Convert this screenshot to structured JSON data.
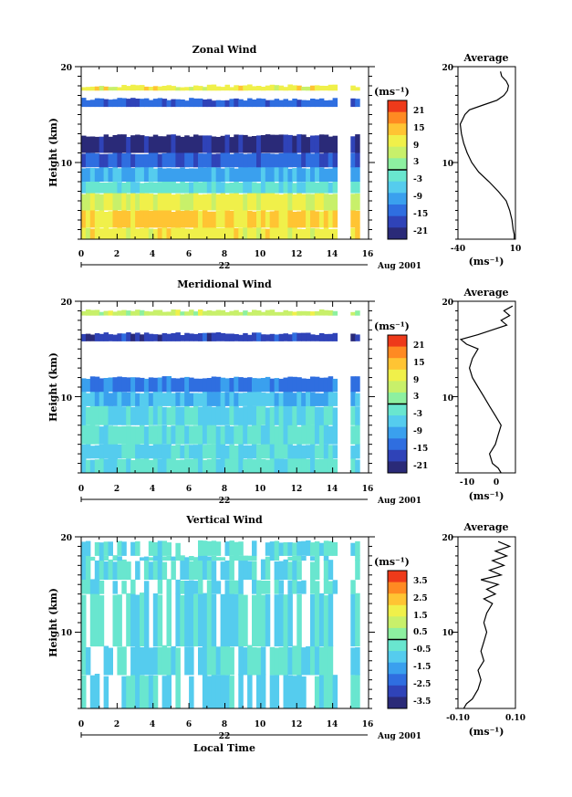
{
  "chart_data": [
    {
      "type": "heatmap",
      "title": "Zonal Wind",
      "ylabel": "Height (km)",
      "xlim": [
        0,
        16
      ],
      "ylim": [
        2,
        20
      ],
      "x_ticks": [
        "0",
        "2",
        "4",
        "6",
        "8",
        "10",
        "12",
        "14",
        "16"
      ],
      "y_ticks": [
        "10",
        "20"
      ],
      "date_day": "22",
      "date_label": "Aug 2001",
      "colorbar_unit": "(ms⁻¹)",
      "colorbar_ticks": [
        "21",
        "15",
        "9",
        "3",
        "-3",
        "-9",
        "-15",
        "-21"
      ],
      "colorbar_range": [
        -24,
        24
      ],
      "profile_layers": [
        {
          "h0": 2.0,
          "h1": 3.2,
          "v": 10
        },
        {
          "h0": 3.2,
          "h1": 5.0,
          "v": 13
        },
        {
          "h0": 5.0,
          "h1": 6.8,
          "v": 9
        },
        {
          "h0": 6.8,
          "h1": 8.0,
          "v": -3
        },
        {
          "h0": 8.0,
          "h1": 9.5,
          "v": -9
        },
        {
          "h0": 9.5,
          "h1": 11.0,
          "v": -15
        },
        {
          "h0": 11.0,
          "h1": 12.8,
          "v": -21
        },
        {
          "h0": 12.8,
          "h1": 15.8,
          "v": 0
        },
        {
          "h0": 15.8,
          "h1": 16.6,
          "v": -15
        },
        {
          "h0": 16.6,
          "h1": 17.5,
          "v": 0
        },
        {
          "h0": 17.5,
          "h1": 18.0,
          "v": 10
        }
      ],
      "average": {
        "title": "Average",
        "xlim": [
          -40,
          10
        ],
        "x_ticks": [
          "-40",
          "10"
        ],
        "y_ticks": [
          "10",
          "20"
        ],
        "xlabel": "(ms⁻¹)",
        "profile": [
          [
            2,
            9
          ],
          [
            2.5,
            9
          ],
          [
            3,
            8
          ],
          [
            4,
            7
          ],
          [
            5,
            5
          ],
          [
            6,
            2
          ],
          [
            7,
            -5
          ],
          [
            8,
            -13
          ],
          [
            9,
            -22
          ],
          [
            10,
            -28
          ],
          [
            11,
            -32
          ],
          [
            12,
            -35
          ],
          [
            13,
            -37
          ],
          [
            14,
            -38
          ],
          [
            15,
            -34
          ],
          [
            15.5,
            -30
          ],
          [
            16,
            -18
          ],
          [
            16.5,
            -6
          ],
          [
            17,
            0
          ],
          [
            17.5,
            3
          ],
          [
            18,
            4
          ],
          [
            18.5,
            2
          ],
          [
            19,
            -2
          ],
          [
            19.5,
            -3
          ]
        ]
      }
    },
    {
      "type": "heatmap",
      "title": "Meridional Wind",
      "ylabel": "Height (km)",
      "xlim": [
        0,
        16
      ],
      "ylim": [
        2,
        20
      ],
      "x_ticks": [
        "0",
        "2",
        "4",
        "6",
        "8",
        "10",
        "12",
        "14",
        "16"
      ],
      "y_ticks": [
        "10",
        "20"
      ],
      "date_day": "22",
      "date_label": "Aug 2001",
      "colorbar_unit": "(ms⁻¹)",
      "colorbar_ticks": [
        "21",
        "15",
        "9",
        "3",
        "-3",
        "-9",
        "-15",
        "-21"
      ],
      "colorbar_range": [
        -24,
        24
      ],
      "profile_layers": [
        {
          "h0": 2.0,
          "h1": 3.5,
          "v": -3
        },
        {
          "h0": 3.5,
          "h1": 5.0,
          "v": -5
        },
        {
          "h0": 5.0,
          "h1": 7.0,
          "v": -3
        },
        {
          "h0": 7.0,
          "h1": 9.0,
          "v": -5
        },
        {
          "h0": 9.0,
          "h1": 10.5,
          "v": -8
        },
        {
          "h0": 10.5,
          "h1": 12.0,
          "v": -13
        },
        {
          "h0": 12.0,
          "h1": 13.2,
          "v": 0
        },
        {
          "h0": 13.2,
          "h1": 15.8,
          "v": 0
        },
        {
          "h0": 15.8,
          "h1": 16.6,
          "v": -18
        },
        {
          "h0": 16.6,
          "h1": 18.5,
          "v": 0
        },
        {
          "h0": 18.5,
          "h1": 19.0,
          "v": 6
        }
      ],
      "average": {
        "title": "Average",
        "xlim": [
          -15,
          5
        ],
        "x_ticks": [
          "-10",
          "0"
        ],
        "y_ticks": [
          "10",
          "20"
        ],
        "xlabel": "(ms⁻¹)",
        "profile": [
          [
            2,
            0
          ],
          [
            2.5,
            -1
          ],
          [
            3,
            -3
          ],
          [
            4,
            -4
          ],
          [
            5,
            -2
          ],
          [
            6,
            -1
          ],
          [
            7,
            0
          ],
          [
            8,
            -2
          ],
          [
            9,
            -4
          ],
          [
            10,
            -6
          ],
          [
            11,
            -8
          ],
          [
            12,
            -10
          ],
          [
            13,
            -11
          ],
          [
            14,
            -10
          ],
          [
            15,
            -8
          ],
          [
            15.5,
            -12
          ],
          [
            16,
            -14
          ],
          [
            16.5,
            -8
          ],
          [
            17,
            -3
          ],
          [
            17.5,
            2
          ],
          [
            18,
            0
          ],
          [
            18.5,
            3
          ],
          [
            19,
            1
          ],
          [
            19.5,
            4
          ]
        ]
      }
    },
    {
      "type": "heatmap",
      "title": "Vertical Wind",
      "ylabel": "Height (km)",
      "xlabel": "Local Time",
      "xlim": [
        0,
        16
      ],
      "ylim": [
        2,
        20
      ],
      "x_ticks": [
        "0",
        "2",
        "4",
        "6",
        "8",
        "10",
        "12",
        "14",
        "16"
      ],
      "y_ticks": [
        "10",
        "20"
      ],
      "date_day": "22",
      "date_label": "Aug 2001",
      "colorbar_unit": "(ms⁻¹)",
      "colorbar_ticks": [
        "3.5",
        "2.5",
        "1.5",
        "0.5",
        "-0.5",
        "-1.5",
        "-2.5",
        "-3.5"
      ],
      "colorbar_range": [
        -4,
        4
      ],
      "profile_layers": [
        {
          "h0": 2.0,
          "h1": 5.5,
          "v": -0.6
        },
        {
          "h0": 5.5,
          "h1": 8.5,
          "v": -0.2
        },
        {
          "h0": 8.5,
          "h1": 14.0,
          "v": 0.0
        },
        {
          "h0": 14.0,
          "h1": 15.5,
          "v": 0.0
        },
        {
          "h0": 15.5,
          "h1": 17.5,
          "v": 0.0
        },
        {
          "h0": 17.5,
          "h1": 18.0,
          "v": 0.0
        },
        {
          "h0": 18.0,
          "h1": 19.5,
          "v": 0.0
        }
      ],
      "average": {
        "title": "Average",
        "xlim": [
          -0.1,
          0.1
        ],
        "x_ticks": [
          "-0.10",
          "0.10"
        ],
        "y_ticks": [
          "10",
          "20"
        ],
        "xlabel": "(ms⁻¹)",
        "profile": [
          [
            2,
            -0.08
          ],
          [
            2.5,
            -0.07
          ],
          [
            3,
            -0.05
          ],
          [
            4,
            -0.03
          ],
          [
            5,
            -0.02
          ],
          [
            6,
            -0.03
          ],
          [
            7,
            -0.01
          ],
          [
            8,
            -0.02
          ],
          [
            9,
            -0.01
          ],
          [
            10,
            0.0
          ],
          [
            11,
            -0.01
          ],
          [
            12,
            0.0
          ],
          [
            13,
            0.02
          ],
          [
            13.5,
            -0.01
          ],
          [
            14,
            0.03
          ],
          [
            14.5,
            0.0
          ],
          [
            15,
            0.04
          ],
          [
            15.5,
            -0.02
          ],
          [
            16,
            0.05
          ],
          [
            16.5,
            0.01
          ],
          [
            17,
            0.06
          ],
          [
            17.5,
            0.02
          ],
          [
            18,
            0.07
          ],
          [
            18.5,
            0.03
          ],
          [
            19,
            0.08
          ],
          [
            19.5,
            0.04
          ]
        ]
      }
    }
  ]
}
